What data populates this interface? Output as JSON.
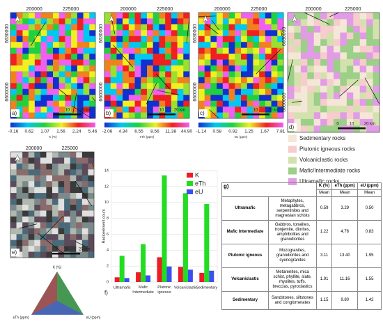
{
  "maps": [
    {
      "panel": "a)",
      "xticks": [
        "200000",
        "225000"
      ],
      "yticks": [
        "6630000",
        "6600000"
      ],
      "scale": [
        "10",
        "20 km"
      ],
      "colorbar": {
        "ticks": [
          "-0.16",
          "0.62",
          "1.07",
          "1.56",
          "2.24",
          "5.46"
        ],
        "label": "K (%)"
      }
    },
    {
      "panel": "b)",
      "xticks": [
        "200000",
        "225000"
      ],
      "yticks": [
        "6630000",
        "6600000"
      ],
      "scale": [
        "10",
        "20 km"
      ],
      "colorbar": {
        "ticks": [
          "-2.06",
          "4.34",
          "6.55",
          "8.56",
          "11.38",
          "44.90"
        ],
        "label": "eTh (ppm)"
      }
    },
    {
      "panel": "c)",
      "xticks": [
        "200000",
        "225000"
      ],
      "yticks": [
        "6630000",
        "6600000"
      ],
      "scale": [
        "10",
        "20 km"
      ],
      "colorbar": {
        "ticks": [
          "-1.14",
          "0.58",
          "0.92",
          "1.25",
          "1.67",
          "7.81"
        ],
        "label": "eU (ppm)"
      }
    },
    {
      "panel": "d)",
      "xticks": [
        "200000",
        "225000"
      ],
      "yticks": [
        "6630000",
        "6600000"
      ],
      "scale": [
        "0",
        "10",
        "20 km"
      ]
    },
    {
      "panel": "e)",
      "xticks": [
        "200000",
        "225000"
      ],
      "scale": [
        "10",
        "20 km"
      ]
    }
  ],
  "geology_legend": [
    {
      "label": "Sedimentary rocks",
      "color": "#f4e7d7"
    },
    {
      "label": "Plutonic igneous rocks",
      "color": "#f6cccc"
    },
    {
      "label": "Volcaniclastic rocks",
      "color": "#d3e2ad"
    },
    {
      "label": "Mafic/Intermediate rocks",
      "color": "#9ccf88"
    },
    {
      "label": "Ultramafic rocks",
      "color": "#e29be6"
    }
  ],
  "ternary": {
    "top": "K (%)",
    "left": "eTh (ppm)",
    "right": "eU (ppm)"
  },
  "chart_data": {
    "type": "bar",
    "panel": "f)",
    "ylabel": "Radioelement count",
    "categories": [
      "Ultramafic",
      "Mafic Intermediate",
      "Plutonic igneous",
      "Volcaniclastic",
      "Sedimentary"
    ],
    "series": [
      {
        "name": "K",
        "color": "#ee1c25",
        "values": [
          0.59,
          1.22,
          3.11,
          1.91,
          1.15
        ]
      },
      {
        "name": "eTh",
        "color": "#22dd22",
        "values": [
          3.29,
          4.76,
          13.4,
          11.16,
          9.8
        ]
      },
      {
        "name": "eU",
        "color": "#3a4ff0",
        "values": [
          0.5,
          0.83,
          1.95,
          1.55,
          1.42
        ]
      }
    ],
    "ylim": [
      0,
      14
    ],
    "yticks": [
      0,
      2,
      4,
      6,
      8,
      10,
      12,
      14
    ],
    "grid": true,
    "legend": "upper right"
  },
  "table": {
    "panel": "g)",
    "headers": [
      "K (%)",
      "eTh (ppm)",
      "eU (ppm)"
    ],
    "subheaders": [
      "Mean",
      "Mean",
      "Mean"
    ],
    "rows": [
      [
        "Ultramafic",
        "Metaphytes, metagabbros, serpentinites and magnesian schists",
        "0.59",
        "3.29",
        "0.50"
      ],
      [
        "Mafic Intermediate",
        "Gabbros, tonalites, tronjemite, diorites, amphibolites and granodiorites",
        "1.22",
        "4.76",
        "0.83"
      ],
      [
        "Plutonic igneous",
        "Mozogranites, granodiorites and syenogranites",
        "3.11",
        "13.40",
        "1.95"
      ],
      [
        "Volcaniclastic",
        "Metarenites, mica schist, phyllite, slate, rhyolites, tuffs, breccias, pyroclastics",
        "1.91",
        "11.16",
        "1.55"
      ],
      [
        "Sedimentary",
        "Sandstones, siltstones and conglomerates",
        "1.15",
        "9.80",
        "1.42"
      ]
    ]
  }
}
